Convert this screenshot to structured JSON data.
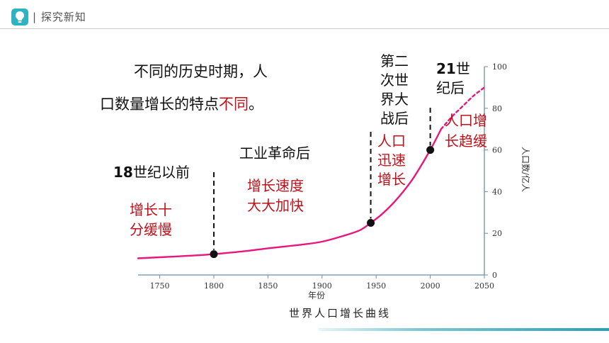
{
  "header": {
    "title": "| 探究新知"
  },
  "intro": {
    "line1": "不同的历史时期，人",
    "line2_prefix": "口数量增长的特点",
    "line2_highlight": "不同",
    "line2_suffix": "。"
  },
  "annotations": {
    "pre18": {
      "title_num": "18",
      "title_rest": "世纪以前",
      "desc": "增长十\n分缓慢"
    },
    "industrial": {
      "title": "工业革命后",
      "desc": "增长速度\n大大加快"
    },
    "ww2": {
      "title": "第二\n次世\n界大\n战后",
      "desc": "人口\n迅速\n增长"
    },
    "c21": {
      "title_num": "21",
      "title_rest": "世\n纪后",
      "desc": "人口增\n长趋缓"
    }
  },
  "caption": "世界人口增长曲线",
  "colors": {
    "curve": "#e8177d",
    "axis": "#6a8fa8",
    "highlight_text": "#c0111a",
    "brand": "#2fb3c3"
  },
  "chart_data": {
    "type": "line",
    "xlabel": "年份",
    "ylabel": "人口数/亿人",
    "xlim": [
      1730,
      2050
    ],
    "ylim": [
      0,
      100
    ],
    "xticks": [
      1750,
      1800,
      1850,
      1900,
      1950,
      2000,
      2050
    ],
    "yticks": [
      0,
      20,
      40,
      60,
      80,
      100
    ],
    "y_axis_position": "right",
    "series": [
      {
        "style": "solid",
        "x": [
          1730,
          1750,
          1780,
          1800,
          1830,
          1850,
          1880,
          1900,
          1920,
          1935,
          1945,
          1955,
          1965,
          1975,
          1985,
          2000,
          2010
        ],
        "y": [
          8,
          8.5,
          9.3,
          10,
          11.5,
          12.8,
          14.5,
          16,
          18.8,
          21.5,
          25,
          29,
          34,
          40,
          47,
          60,
          70
        ]
      },
      {
        "style": "dashed",
        "x": [
          2010,
          2020,
          2030,
          2040,
          2050
        ],
        "y": [
          70,
          76,
          81,
          86,
          90
        ]
      }
    ],
    "markers": [
      {
        "x": 1800,
        "y": 10
      },
      {
        "x": 1945,
        "y": 25
      },
      {
        "x": 2000,
        "y": 60
      }
    ]
  }
}
